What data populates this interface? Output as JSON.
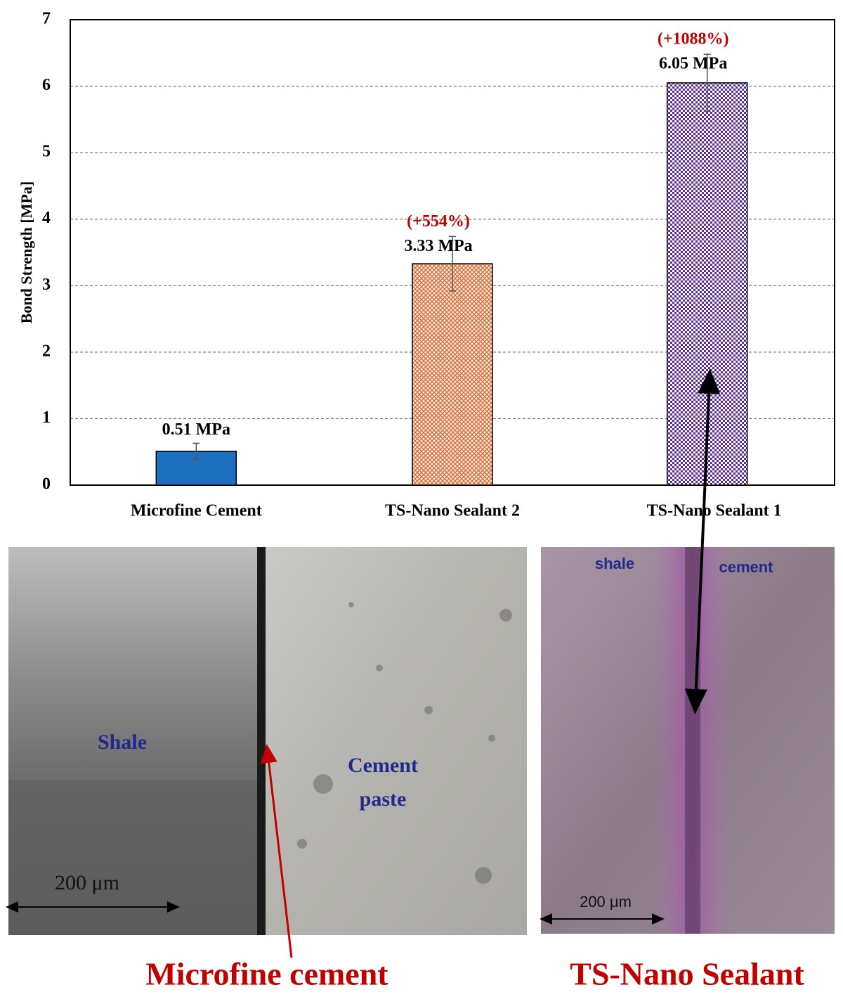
{
  "chart_data": {
    "type": "bar",
    "ylabel": "Bond Strength [MPa]",
    "categories": [
      "Microfine Cement",
      "TS-Nano Sealant 2",
      "TS-Nano Sealant 1"
    ],
    "values": [
      0.51,
      3.33,
      6.05
    ],
    "value_labels": [
      "0.51 MPa",
      "3.33 MPa",
      "6.05 MPa"
    ],
    "errors": [
      0.12,
      0.41,
      0.43
    ],
    "value_notes": [
      null,
      "(+554%)",
      "(+1088%)"
    ],
    "colors": [
      "#1f6fc0",
      "#d2733f",
      "#5b2a9c"
    ],
    "ylim": [
      0,
      7
    ],
    "yticks": [
      0,
      1,
      2,
      3,
      4,
      5,
      6,
      7
    ],
    "grid": true
  },
  "photos": {
    "left": {
      "labels": [
        "Shale",
        "Cement paste"
      ],
      "scale": "200 μm",
      "caption": "Microfine cement"
    },
    "right": {
      "labels": [
        "shale",
        "cement"
      ],
      "scale": "200 μm",
      "caption": "TS-Nano Sealant"
    }
  }
}
